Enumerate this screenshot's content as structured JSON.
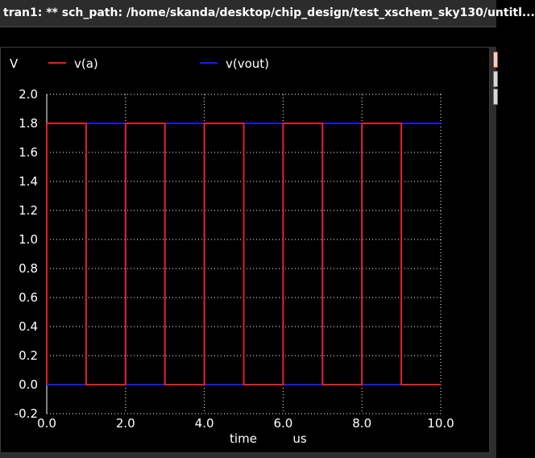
{
  "window": {
    "title": "tran1: ** sch_path: /home/skanda/desktop/chip_design/test_xschem_sky130/untitl..."
  },
  "chart_data": {
    "type": "line",
    "ylabel": "V",
    "xlabel": "time",
    "x_unit": "us",
    "xlim": [
      0,
      10
    ],
    "ylim": [
      -0.2,
      2.0
    ],
    "x_ticks": [
      "0.0",
      "2.0",
      "4.0",
      "6.0",
      "8.0",
      "10.0"
    ],
    "y_ticks": [
      "2.0",
      "1.8",
      "1.6",
      "1.4",
      "1.2",
      "1.0",
      "0.8",
      "0.6",
      "0.4",
      "0.2",
      "0.0",
      "-0.2"
    ],
    "grid": true,
    "legend_position": "top",
    "series": [
      {
        "name": "v(a)",
        "color": "#e32020",
        "x": [
          0,
          0,
          1,
          1,
          2,
          2,
          3,
          3,
          4,
          4,
          5,
          5,
          6,
          6,
          7,
          7,
          8,
          8,
          9,
          9,
          10
        ],
        "y": [
          0,
          1.8,
          1.8,
          0,
          0,
          1.8,
          1.8,
          0,
          0,
          1.8,
          1.8,
          0,
          0,
          1.8,
          1.8,
          0,
          0,
          1.8,
          1.8,
          0,
          0
        ]
      },
      {
        "name": "v(vout)",
        "color": "#1a1aff",
        "x": [
          0,
          0,
          1,
          1,
          2,
          2,
          3,
          3,
          4,
          4,
          5,
          5,
          6,
          6,
          7,
          7,
          8,
          8,
          9,
          9,
          10
        ],
        "y": [
          1.8,
          0,
          0,
          1.8,
          1.8,
          0,
          0,
          1.8,
          1.8,
          0,
          0,
          1.8,
          1.8,
          0,
          0,
          1.8,
          1.8,
          0,
          0,
          1.8,
          1.8
        ]
      }
    ]
  }
}
